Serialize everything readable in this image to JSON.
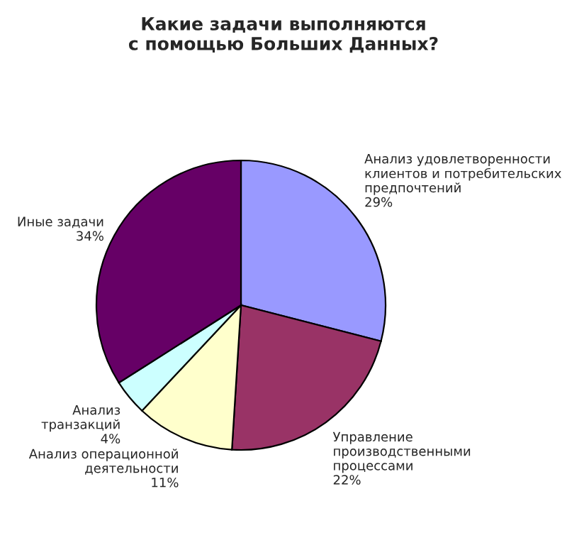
{
  "chart_data": {
    "type": "pie",
    "title": "Какие задачи выполняются\nс помощью Больших Данных?",
    "categories": [
      "Анализ удовлетворенности\nклиентов и потребительских\nпредпочтений",
      "Управление\nпроизводственными\nпроцессами",
      "Анализ операционной\nдеятельности",
      "Анализ\nтранзакций",
      "Иные задачи"
    ],
    "values": [
      29,
      22,
      11,
      4,
      34
    ],
    "value_labels": [
      "29%",
      "22%",
      "11%",
      "4%",
      "34%"
    ],
    "colors": [
      "#9999ff",
      "#993366",
      "#ffffcc",
      "#ccffff",
      "#660066"
    ]
  }
}
